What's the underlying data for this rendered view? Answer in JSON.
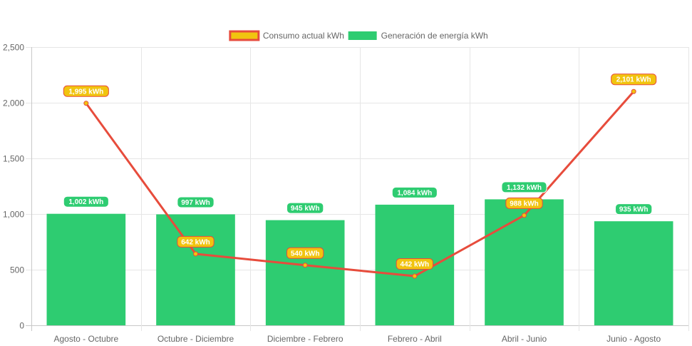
{
  "chart_data": {
    "type": "bar",
    "title": "",
    "xlabel": "",
    "ylabel": "",
    "ylim": [
      0,
      2500
    ],
    "yticks": [
      0,
      500,
      1000,
      1500,
      2000,
      2500
    ],
    "ytick_labels": [
      "0",
      "500",
      "1,000",
      "1,500",
      "2,000",
      "2,500"
    ],
    "grid": true,
    "legend_position": "top-center",
    "categories": [
      "Agosto - Octubre",
      "Octubre - Diciembre",
      "Diciembre - Febrero",
      "Febrero - Abril",
      "Abril - Junio",
      "Junio - Agosto"
    ],
    "series": [
      {
        "name": "Consumo actual kWh",
        "type": "line",
        "color": "#e74c3c",
        "fill": "#f1c40f",
        "values": [
          1995,
          642,
          540,
          442,
          988,
          2101
        ],
        "labels": [
          "1,995 kWh",
          "642 kWh",
          "540 kWh",
          "442 kWh",
          "988 kWh",
          "2,101 kWh"
        ]
      },
      {
        "name": "Generación de energía kWh",
        "type": "bar",
        "color": "#2ecc71",
        "values": [
          1002,
          997,
          945,
          1084,
          1132,
          935
        ],
        "labels": [
          "1,002 kWh",
          "997 kWh",
          "945 kWh",
          "1,084 kWh",
          "1,132 kWh",
          "935 kWh"
        ]
      }
    ]
  }
}
